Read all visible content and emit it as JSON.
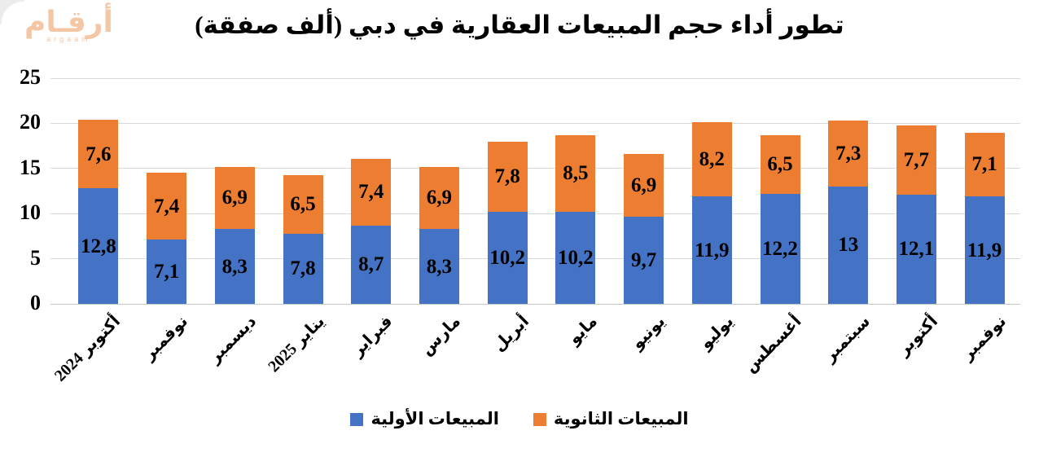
{
  "logo": {
    "arabic": "أرقـام",
    "latin": "argaam",
    "color": "#f4c6a3"
  },
  "chart_data": {
    "type": "bar",
    "stacked": true,
    "title": "تطور أداء حجم المبيعات العقارية في دبي (ألف صفقة)",
    "categories": [
      "أكتوبر 2024",
      "نوفمبر",
      "ديسمبر",
      "يناير 2025",
      "فبراير",
      "مارس",
      "أبريل",
      "مايو",
      "يونيو",
      "يوليو",
      "أغسطس",
      "سبتمبر",
      "أكتوبر",
      "نوفمبر"
    ],
    "series": [
      {
        "name": "المبيعات الأولية",
        "color": "#4472c4",
        "values": [
          12.8,
          7.1,
          8.3,
          7.8,
          8.7,
          8.3,
          10.2,
          10.2,
          9.7,
          11.9,
          12.2,
          13,
          12.1,
          11.9
        ]
      },
      {
        "name": "المبيعات الثانوية",
        "color": "#ed7d31",
        "values": [
          7.6,
          7.4,
          6.9,
          6.5,
          7.4,
          6.9,
          7.8,
          8.5,
          6.9,
          8.2,
          6.5,
          7.3,
          7.7,
          7.1
        ]
      }
    ],
    "ylim": [
      0,
      25
    ],
    "yticks": [
      0,
      5,
      10,
      15,
      20,
      25
    ],
    "grid": true,
    "decimal_separator": ",",
    "legend_position": "bottom",
    "colors": {
      "gridline": "#d9d9d9",
      "text": "#000000"
    }
  }
}
